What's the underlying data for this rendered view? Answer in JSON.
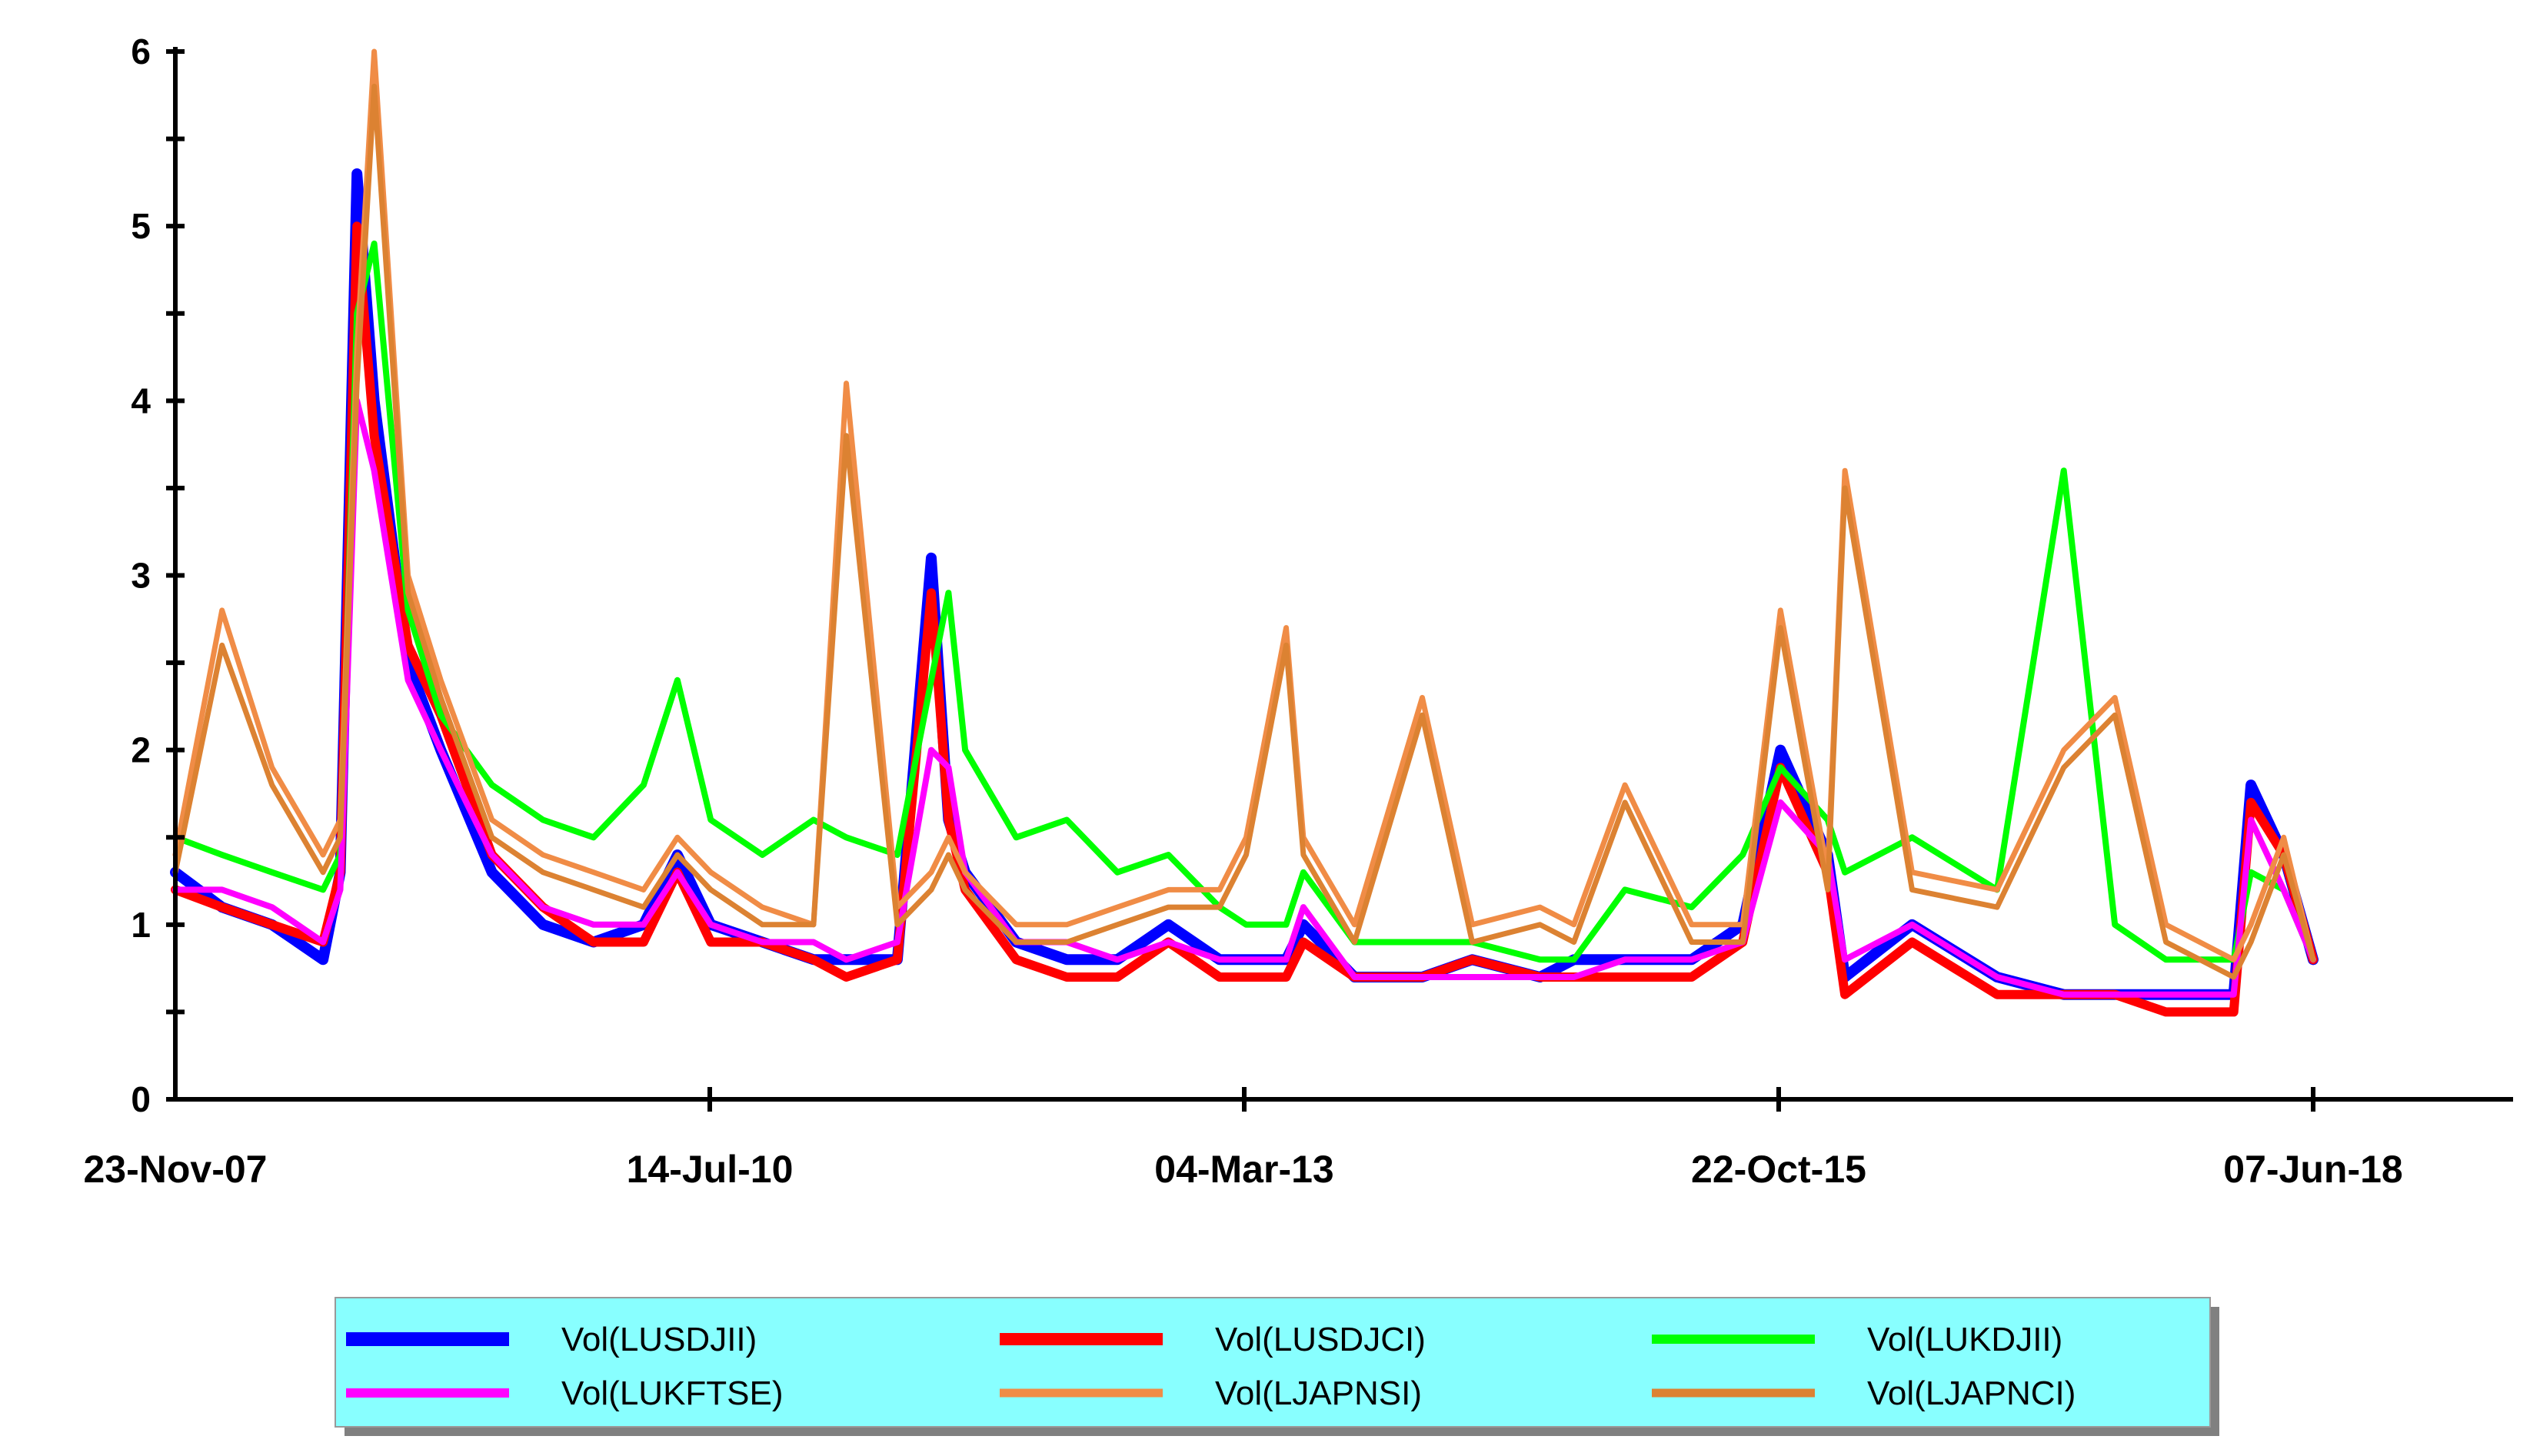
{
  "chart_data": {
    "type": "line",
    "title": "",
    "xlabel": "",
    "ylabel": "",
    "ylim": [
      0,
      6
    ],
    "grid": false,
    "legend_position": "bottom",
    "x_tick_labels": [
      "23-Nov-07",
      "14-Jul-10",
      "04-Mar-13",
      "22-Oct-15",
      "07-Jun-18"
    ],
    "y_tick_labels": [
      "0",
      "1",
      "2",
      "3",
      "4",
      "5",
      "6"
    ],
    "x": [
      "2007-11-23",
      "2008-02",
      "2008-05",
      "2008-08",
      "2008-09-15",
      "2008-10",
      "2008-11",
      "2009-01",
      "2009-03",
      "2009-06",
      "2009-09",
      "2009-12",
      "2010-03",
      "2010-05",
      "2010-07-14",
      "2010-10",
      "2011-01",
      "2011-03",
      "2011-06",
      "2011-08",
      "2011-09",
      "2011-10",
      "2012-01",
      "2012-04",
      "2012-07",
      "2012-10",
      "2013-01",
      "2013-03-04",
      "2013-05",
      "2013-06",
      "2013-09",
      "2014-01",
      "2014-04",
      "2014-08",
      "2014-10",
      "2015-01",
      "2015-05",
      "2015-08",
      "2015-10-22",
      "2016-01",
      "2016-02",
      "2016-06",
      "2016-11",
      "2017-03",
      "2017-06",
      "2017-09",
      "2018-01",
      "2018-02",
      "2018-04",
      "2018-06-07"
    ],
    "series": [
      {
        "name": "Vol(LUSDJII)",
        "color": "#0000ff",
        "values": [
          1.3,
          1.1,
          1.0,
          0.8,
          1.3,
          5.3,
          4.0,
          2.5,
          2.0,
          1.3,
          1.0,
          0.9,
          1.0,
          1.4,
          1.0,
          0.9,
          0.8,
          0.8,
          0.8,
          3.1,
          1.6,
          1.3,
          0.9,
          0.8,
          0.8,
          1.0,
          0.8,
          0.8,
          0.8,
          1.0,
          0.7,
          0.7,
          0.8,
          0.7,
          0.8,
          0.8,
          0.8,
          1.0,
          2.0,
          1.4,
          0.7,
          1.0,
          0.7,
          0.6,
          0.6,
          0.6,
          0.6,
          1.8,
          1.4,
          0.8
        ]
      },
      {
        "name": "Vol(LUSDJCI)",
        "color": "#ff0000",
        "values": [
          1.2,
          1.1,
          1.0,
          0.9,
          1.3,
          5.0,
          3.8,
          2.6,
          2.2,
          1.4,
          1.1,
          0.9,
          0.9,
          1.3,
          0.9,
          0.9,
          0.8,
          0.7,
          0.8,
          2.9,
          1.6,
          1.2,
          0.8,
          0.7,
          0.7,
          0.9,
          0.7,
          0.7,
          0.7,
          0.9,
          0.7,
          0.7,
          0.8,
          0.7,
          0.7,
          0.7,
          0.7,
          0.9,
          1.9,
          1.3,
          0.6,
          0.9,
          0.6,
          0.6,
          0.6,
          0.5,
          0.5,
          1.7,
          1.4,
          0.8
        ]
      },
      {
        "name": "Vol(LUKDJII)",
        "color": "#00ff00",
        "values": [
          1.5,
          1.4,
          1.3,
          1.2,
          1.4,
          4.5,
          4.9,
          2.8,
          2.2,
          1.8,
          1.6,
          1.5,
          1.8,
          2.4,
          1.6,
          1.4,
          1.6,
          1.5,
          1.4,
          2.4,
          2.9,
          2.0,
          1.5,
          1.6,
          1.3,
          1.4,
          1.1,
          1.0,
          1.0,
          1.3,
          0.9,
          0.9,
          0.9,
          0.8,
          0.8,
          1.2,
          1.1,
          1.4,
          1.9,
          1.6,
          1.3,
          1.5,
          1.2,
          3.6,
          1.0,
          0.8,
          0.8,
          1.3,
          1.2,
          0.8
        ]
      },
      {
        "name": "Vol(LUKFTSE)",
        "color": "#ff00ff",
        "values": [
          1.2,
          1.2,
          1.1,
          0.9,
          1.2,
          4.0,
          3.6,
          2.4,
          2.0,
          1.4,
          1.1,
          1.0,
          1.0,
          1.3,
          1.0,
          0.9,
          0.9,
          0.8,
          0.9,
          2.0,
          1.9,
          1.3,
          0.9,
          0.9,
          0.8,
          0.9,
          0.8,
          0.8,
          0.8,
          1.1,
          0.7,
          0.7,
          0.7,
          0.7,
          0.7,
          0.8,
          0.8,
          0.9,
          1.7,
          1.4,
          0.8,
          1.0,
          0.7,
          0.6,
          0.6,
          0.6,
          0.6,
          1.6,
          1.2,
          0.8
        ]
      },
      {
        "name": "Vol(LJAPNSI)",
        "color": "#f08c46",
        "values": [
          1.4,
          2.8,
          1.9,
          1.4,
          1.6,
          4.3,
          6.0,
          3.0,
          2.4,
          1.6,
          1.4,
          1.3,
          1.2,
          1.5,
          1.3,
          1.1,
          1.0,
          4.1,
          1.1,
          1.3,
          1.5,
          1.3,
          1.0,
          1.0,
          1.1,
          1.2,
          1.2,
          1.5,
          2.7,
          1.5,
          1.0,
          2.3,
          1.0,
          1.1,
          1.0,
          1.8,
          1.0,
          1.0,
          2.8,
          1.3,
          3.6,
          1.3,
          1.2,
          2.0,
          2.3,
          1.0,
          0.8,
          1.0,
          1.5,
          0.8
        ]
      },
      {
        "name": "Vol(LJAPNCI)",
        "color": "#dc8232",
        "values": [
          1.3,
          2.6,
          1.8,
          1.3,
          1.5,
          4.1,
          5.8,
          2.9,
          2.3,
          1.5,
          1.3,
          1.2,
          1.1,
          1.4,
          1.2,
          1.0,
          1.0,
          3.8,
          1.0,
          1.2,
          1.4,
          1.2,
          0.9,
          0.9,
          1.0,
          1.1,
          1.1,
          1.4,
          2.6,
          1.4,
          0.9,
          2.2,
          0.9,
          1.0,
          0.9,
          1.7,
          0.9,
          0.9,
          2.7,
          1.2,
          3.5,
          1.2,
          1.1,
          1.9,
          2.2,
          0.9,
          0.7,
          0.9,
          1.4,
          0.8
        ]
      }
    ]
  }
}
